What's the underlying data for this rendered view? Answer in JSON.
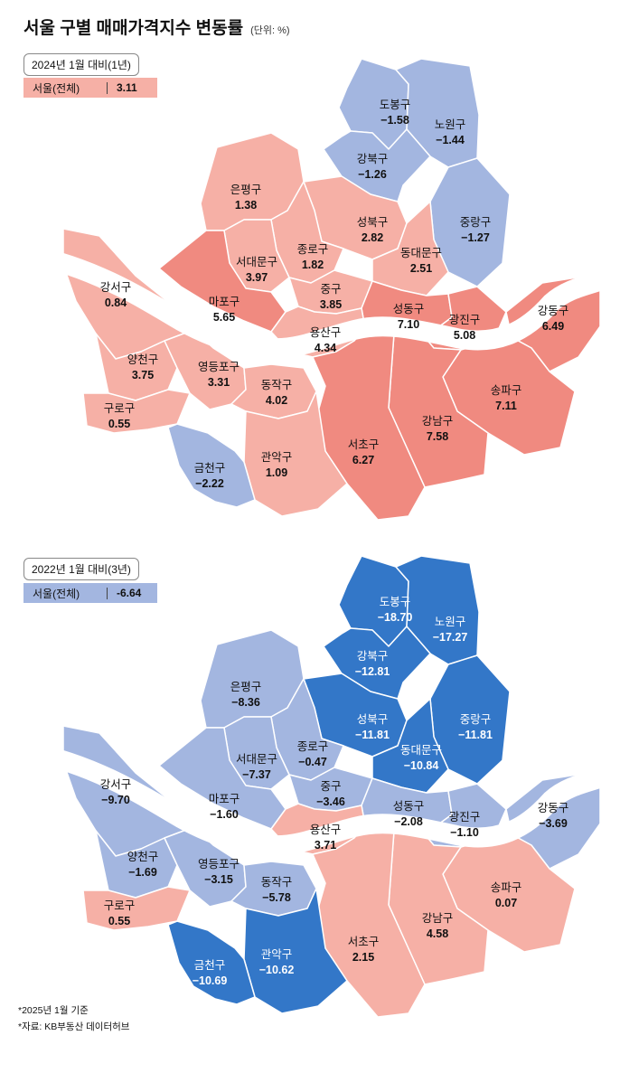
{
  "title": "서울 구별 매매가격지수 변동률",
  "unit": "(단위: %)",
  "colors": {
    "strong_rise": "#f08a80",
    "rise": "#f6b0a6",
    "fall": "#a3b6e0",
    "strong_fall": "#3377c8",
    "river": "#ffffff"
  },
  "maps": [
    {
      "period": "2024년 1월 대비(1년)",
      "summary_label": "서울(전체)",
      "summary_value": "3.11",
      "summary_color": "#f6b0a6",
      "districts": [
        {
          "name": "도봉구",
          "value": "-1.58",
          "color": "#a3b6e0"
        },
        {
          "name": "노원구",
          "value": "-1.44",
          "color": "#a3b6e0"
        },
        {
          "name": "강북구",
          "value": "-1.26",
          "color": "#a3b6e0"
        },
        {
          "name": "은평구",
          "value": "1.38",
          "color": "#f6b0a6"
        },
        {
          "name": "성북구",
          "value": "2.82",
          "color": "#f6b0a6"
        },
        {
          "name": "중랑구",
          "value": "-1.27",
          "color": "#a3b6e0"
        },
        {
          "name": "종로구",
          "value": "1.82",
          "color": "#f6b0a6"
        },
        {
          "name": "동대문구",
          "value": "2.51",
          "color": "#f6b0a6"
        },
        {
          "name": "서대문구",
          "value": "3.97",
          "color": "#f6b0a6"
        },
        {
          "name": "마포구",
          "value": "5.65",
          "color": "#f08a80"
        },
        {
          "name": "중구",
          "value": "3.85",
          "color": "#f6b0a6"
        },
        {
          "name": "성동구",
          "value": "7.10",
          "color": "#f08a80"
        },
        {
          "name": "광진구",
          "value": "5.08",
          "color": "#f08a80"
        },
        {
          "name": "강동구",
          "value": "6.49",
          "color": "#f08a80"
        },
        {
          "name": "강서구",
          "value": "0.84",
          "color": "#f6b0a6"
        },
        {
          "name": "용산구",
          "value": "4.34",
          "color": "#f6b0a6"
        },
        {
          "name": "양천구",
          "value": "3.75",
          "color": "#f6b0a6"
        },
        {
          "name": "영등포구",
          "value": "3.31",
          "color": "#f6b0a6"
        },
        {
          "name": "동작구",
          "value": "4.02",
          "color": "#f6b0a6"
        },
        {
          "name": "송파구",
          "value": "7.11",
          "color": "#f08a80"
        },
        {
          "name": "구로구",
          "value": "0.55",
          "color": "#f6b0a6"
        },
        {
          "name": "강남구",
          "value": "7.58",
          "color": "#f08a80"
        },
        {
          "name": "서초구",
          "value": "6.27",
          "color": "#f08a80"
        },
        {
          "name": "관악구",
          "value": "1.09",
          "color": "#f6b0a6"
        },
        {
          "name": "금천구",
          "value": "-2.22",
          "color": "#a3b6e0"
        }
      ]
    },
    {
      "period": "2022년 1월 대비(3년)",
      "summary_label": "서울(전체)",
      "summary_value": "-6.64",
      "summary_color": "#a3b6e0",
      "districts": [
        {
          "name": "도봉구",
          "value": "-18.70",
          "color": "#3377c8"
        },
        {
          "name": "노원구",
          "value": "-17.27",
          "color": "#3377c8"
        },
        {
          "name": "강북구",
          "value": "-12.81",
          "color": "#3377c8"
        },
        {
          "name": "은평구",
          "value": "-8.36",
          "color": "#a3b6e0"
        },
        {
          "name": "성북구",
          "value": "-11.81",
          "color": "#3377c8"
        },
        {
          "name": "중랑구",
          "value": "-11.81",
          "color": "#3377c8"
        },
        {
          "name": "종로구",
          "value": "-0.47",
          "color": "#a3b6e0"
        },
        {
          "name": "동대문구",
          "value": "-10.84",
          "color": "#3377c8"
        },
        {
          "name": "서대문구",
          "value": "-7.37",
          "color": "#a3b6e0"
        },
        {
          "name": "마포구",
          "value": "-1.60",
          "color": "#a3b6e0"
        },
        {
          "name": "중구",
          "value": "-3.46",
          "color": "#a3b6e0"
        },
        {
          "name": "성동구",
          "value": "-2.08",
          "color": "#a3b6e0"
        },
        {
          "name": "광진구",
          "value": "-1.10",
          "color": "#a3b6e0"
        },
        {
          "name": "강동구",
          "value": "-3.69",
          "color": "#a3b6e0"
        },
        {
          "name": "강서구",
          "value": "-9.70",
          "color": "#a3b6e0"
        },
        {
          "name": "용산구",
          "value": "3.71",
          "color": "#f6b0a6"
        },
        {
          "name": "양천구",
          "value": "-1.69",
          "color": "#a3b6e0"
        },
        {
          "name": "영등포구",
          "value": "-3.15",
          "color": "#a3b6e0"
        },
        {
          "name": "동작구",
          "value": "-5.78",
          "color": "#a3b6e0"
        },
        {
          "name": "송파구",
          "value": "0.07",
          "color": "#f6b0a6"
        },
        {
          "name": "구로구",
          "value": "0.55",
          "color": "#f6b0a6"
        },
        {
          "name": "강남구",
          "value": "4.58",
          "color": "#f6b0a6"
        },
        {
          "name": "서초구",
          "value": "2.15",
          "color": "#f6b0a6"
        },
        {
          "name": "관악구",
          "value": "-10.62",
          "color": "#3377c8"
        },
        {
          "name": "금천구",
          "value": "-10.69",
          "color": "#3377c8"
        }
      ]
    }
  ],
  "footnotes": [
    "*2025년 1월 기준",
    "*자료: KB부동산 데이터허브"
  ]
}
